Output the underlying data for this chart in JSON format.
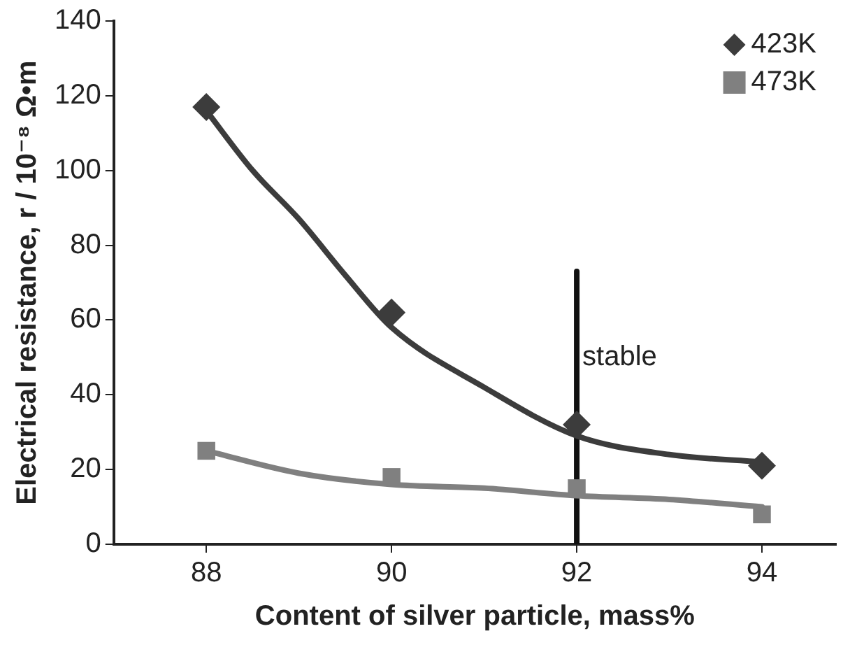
{
  "chart_data": {
    "type": "scatter",
    "xlabel": "Content of silver particle, mass%",
    "ylabel": "Electrical resistance, r / 10⁻⁸ Ω•m",
    "xlim": [
      87,
      94.8
    ],
    "xticks": [
      88,
      90,
      92,
      94
    ],
    "ylim": [
      0,
      140
    ],
    "yticks": [
      0,
      20,
      40,
      60,
      80,
      100,
      120,
      140
    ],
    "grid": false,
    "legend": "top right",
    "series": [
      {
        "name": "423K",
        "type": "scatter",
        "marker": "diamond",
        "color": "#3c3c3c",
        "x": [
          88,
          90,
          92,
          94
        ],
        "values": [
          117,
          62,
          32,
          21
        ]
      },
      {
        "name": "473K",
        "type": "scatter",
        "marker": "square",
        "color": "#808080",
        "x": [
          88,
          90,
          92,
          94
        ],
        "values": [
          25,
          18,
          15,
          8
        ]
      },
      {
        "type": "line",
        "marker": "none",
        "color": "#3c3c3c",
        "x": [
          88,
          88.5,
          89,
          89.5,
          90,
          91,
          92,
          93,
          94
        ],
        "values": [
          116,
          100,
          87,
          72,
          58,
          42,
          29,
          24,
          22
        ]
      },
      {
        "type": "line",
        "marker": "none",
        "color": "#808080",
        "x": [
          88,
          89,
          90,
          91,
          92,
          93,
          94
        ],
        "values": [
          25,
          19,
          16,
          15,
          13,
          12,
          10
        ]
      },
      {
        "type": "line",
        "marker": "none",
        "color": "#111111",
        "x": [
          92,
          92
        ],
        "values": [
          0,
          73
        ]
      }
    ],
    "annotations": [
      {
        "text": "stable",
        "x": 92,
        "y": 50
      }
    ]
  }
}
